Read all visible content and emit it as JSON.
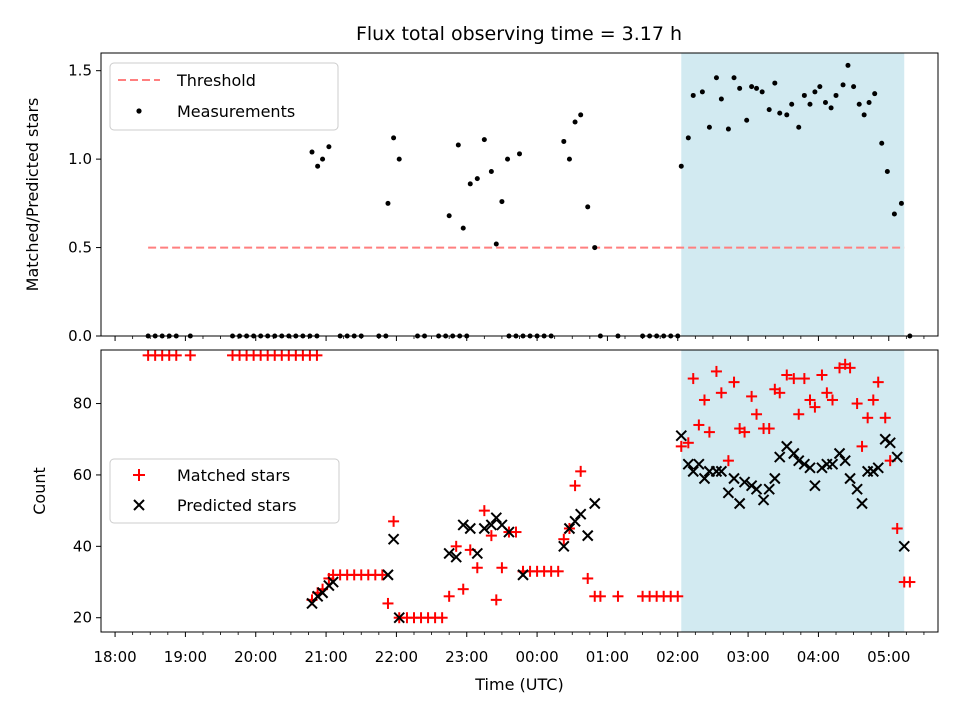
{
  "chart_data": {
    "type": "scatter",
    "title": "Flux total observing time = 3.17 h",
    "xlabel": "Time (UTC)",
    "x_unit": "hours since 18:00 UTC (values > 6 wrap past midnight)",
    "x_range": [
      -0.2,
      11.7
    ],
    "x_ticks": [
      0,
      1,
      2,
      3,
      4,
      5,
      6,
      7,
      8,
      9,
      10,
      11
    ],
    "x_tick_labels": [
      "18:00",
      "19:00",
      "20:00",
      "21:00",
      "22:00",
      "23:00",
      "00:00",
      "01:00",
      "02:00",
      "03:00",
      "04:00",
      "05:00"
    ],
    "highlight_span": {
      "start": 8.05,
      "end": 11.22
    },
    "colors": {
      "threshold": "#ff7f7f",
      "matched": "#ff0000",
      "predicted": "#000000",
      "span": "#add8e6",
      "measure": "#000000"
    },
    "top_panel": {
      "ylabel": "Matched/Predicted stars",
      "ylim": [
        0,
        1.6
      ],
      "yticks": [
        0.0,
        0.5,
        1.0,
        1.5
      ],
      "ytick_labels": [
        "0.0",
        "0.5",
        "1.0",
        "1.5"
      ],
      "threshold": {
        "label": "Threshold",
        "value": 0.5,
        "x_start": 0.47,
        "x_end": 11.22
      },
      "measurements_label": "Measurements",
      "measurements": [
        [
          0.47,
          0
        ],
        [
          0.57,
          0
        ],
        [
          0.67,
          0
        ],
        [
          0.77,
          0
        ],
        [
          0.87,
          0
        ],
        [
          1.07,
          0
        ],
        [
          1.67,
          0
        ],
        [
          1.77,
          0
        ],
        [
          1.87,
          0
        ],
        [
          1.97,
          0
        ],
        [
          2.07,
          0
        ],
        [
          2.17,
          0
        ],
        [
          2.27,
          0
        ],
        [
          2.37,
          0
        ],
        [
          2.47,
          0
        ],
        [
          2.57,
          0
        ],
        [
          2.67,
          0
        ],
        [
          2.77,
          0
        ],
        [
          2.87,
          0
        ],
        [
          3.2,
          0
        ],
        [
          3.3,
          0
        ],
        [
          3.4,
          0
        ],
        [
          3.5,
          0
        ],
        [
          3.75,
          0
        ],
        [
          3.85,
          0
        ],
        [
          4.3,
          0
        ],
        [
          4.4,
          0
        ],
        [
          4.6,
          0
        ],
        [
          4.7,
          0
        ],
        [
          4.8,
          0
        ],
        [
          4.9,
          0
        ],
        [
          5.0,
          0
        ],
        [
          5.6,
          0
        ],
        [
          5.7,
          0
        ],
        [
          5.8,
          0
        ],
        [
          5.9,
          0
        ],
        [
          6.0,
          0
        ],
        [
          6.1,
          0
        ],
        [
          6.2,
          0
        ],
        [
          6.9,
          0
        ],
        [
          7.15,
          0
        ],
        [
          7.5,
          0
        ],
        [
          7.6,
          0
        ],
        [
          7.7,
          0
        ],
        [
          7.8,
          0
        ],
        [
          7.9,
          0
        ],
        [
          8.0,
          0
        ],
        [
          11.3,
          0
        ],
        [
          2.8,
          1.04
        ],
        [
          2.88,
          0.96
        ],
        [
          2.95,
          1.0
        ],
        [
          3.04,
          1.07
        ],
        [
          3.88,
          0.75
        ],
        [
          3.96,
          1.12
        ],
        [
          4.04,
          1.0
        ],
        [
          4.75,
          0.68
        ],
        [
          4.88,
          1.08
        ],
        [
          4.95,
          0.61
        ],
        [
          5.05,
          0.86
        ],
        [
          5.15,
          0.89
        ],
        [
          5.25,
          1.11
        ],
        [
          5.35,
          0.93
        ],
        [
          5.42,
          0.52
        ],
        [
          5.5,
          0.76
        ],
        [
          5.58,
          1.0
        ],
        [
          5.75,
          1.03
        ],
        [
          6.38,
          1.1
        ],
        [
          6.46,
          1.0
        ],
        [
          6.54,
          1.21
        ],
        [
          6.62,
          1.25
        ],
        [
          6.72,
          0.73
        ],
        [
          6.82,
          0.5
        ],
        [
          8.05,
          0.96
        ],
        [
          8.15,
          1.12
        ],
        [
          8.22,
          1.36
        ],
        [
          8.35,
          1.38
        ],
        [
          8.45,
          1.18
        ],
        [
          8.55,
          1.46
        ],
        [
          8.62,
          1.34
        ],
        [
          8.72,
          1.17
        ],
        [
          8.8,
          1.46
        ],
        [
          8.88,
          1.4
        ],
        [
          8.98,
          1.22
        ],
        [
          9.05,
          1.41
        ],
        [
          9.12,
          1.4
        ],
        [
          9.2,
          1.38
        ],
        [
          9.3,
          1.28
        ],
        [
          9.38,
          1.43
        ],
        [
          9.45,
          1.26
        ],
        [
          9.55,
          1.25
        ],
        [
          9.62,
          1.31
        ],
        [
          9.72,
          1.18
        ],
        [
          9.8,
          1.36
        ],
        [
          9.88,
          1.31
        ],
        [
          9.95,
          1.38
        ],
        [
          10.02,
          1.41
        ],
        [
          10.1,
          1.32
        ],
        [
          10.18,
          1.29
        ],
        [
          10.25,
          1.36
        ],
        [
          10.35,
          1.42
        ],
        [
          10.42,
          1.53
        ],
        [
          10.5,
          1.41
        ],
        [
          10.58,
          1.31
        ],
        [
          10.65,
          1.25
        ],
        [
          10.72,
          1.32
        ],
        [
          10.8,
          1.37
        ],
        [
          10.9,
          1.09
        ],
        [
          10.98,
          0.93
        ],
        [
          11.08,
          0.69
        ],
        [
          11.18,
          0.75
        ]
      ]
    },
    "bottom_panel": {
      "ylabel": "Count",
      "ylim": [
        16,
        95
      ],
      "yticks": [
        20,
        40,
        60,
        80
      ],
      "ytick_labels": [
        "20",
        "40",
        "60",
        "80"
      ],
      "series": [
        {
          "name": "Matched stars",
          "marker": "+",
          "color": "#ff0000",
          "points": [
            [
              0.47,
              93.5
            ],
            [
              0.57,
              93.5
            ],
            [
              0.67,
              93.5
            ],
            [
              0.77,
              93.5
            ],
            [
              0.87,
              93.5
            ],
            [
              1.07,
              93.5
            ],
            [
              1.67,
              93.5
            ],
            [
              1.77,
              93.5
            ],
            [
              1.87,
              93.5
            ],
            [
              1.97,
              93.5
            ],
            [
              2.07,
              93.5
            ],
            [
              2.17,
              93.5
            ],
            [
              2.27,
              93.5
            ],
            [
              2.37,
              93.5
            ],
            [
              2.47,
              93.5
            ],
            [
              2.57,
              93.5
            ],
            [
              2.67,
              93.5
            ],
            [
              2.77,
              93.5
            ],
            [
              2.87,
              93.5
            ],
            [
              2.8,
              25
            ],
            [
              2.88,
              27
            ],
            [
              2.95,
              28
            ],
            [
              3.04,
              31
            ],
            [
              3.1,
              32
            ],
            [
              3.2,
              32
            ],
            [
              3.3,
              32
            ],
            [
              3.4,
              32
            ],
            [
              3.5,
              32
            ],
            [
              3.6,
              32
            ],
            [
              3.7,
              32
            ],
            [
              3.8,
              32
            ],
            [
              3.88,
              24
            ],
            [
              3.96,
              47
            ],
            [
              4.04,
              20
            ],
            [
              4.15,
              20
            ],
            [
              4.25,
              20
            ],
            [
              4.35,
              20
            ],
            [
              4.45,
              20
            ],
            [
              4.55,
              20
            ],
            [
              4.65,
              20
            ],
            [
              4.75,
              26
            ],
            [
              4.85,
              40
            ],
            [
              4.95,
              28
            ],
            [
              5.05,
              39
            ],
            [
              5.15,
              34
            ],
            [
              5.25,
              50
            ],
            [
              5.35,
              43
            ],
            [
              5.42,
              25
            ],
            [
              5.5,
              34
            ],
            [
              5.6,
              44
            ],
            [
              5.7,
              44
            ],
            [
              5.8,
              33
            ],
            [
              5.9,
              33
            ],
            [
              6.0,
              33
            ],
            [
              6.1,
              33
            ],
            [
              6.2,
              33
            ],
            [
              6.3,
              33
            ],
            [
              6.38,
              42
            ],
            [
              6.46,
              45
            ],
            [
              6.54,
              57
            ],
            [
              6.62,
              61
            ],
            [
              6.72,
              31
            ],
            [
              6.82,
              26
            ],
            [
              6.9,
              26
            ],
            [
              7.15,
              26
            ],
            [
              7.5,
              26
            ],
            [
              7.6,
              26
            ],
            [
              7.7,
              26
            ],
            [
              7.8,
              26
            ],
            [
              7.9,
              26
            ],
            [
              8.0,
              26
            ],
            [
              8.05,
              68
            ],
            [
              8.15,
              69
            ],
            [
              8.22,
              87
            ],
            [
              8.3,
              74
            ],
            [
              8.38,
              81
            ],
            [
              8.45,
              72
            ],
            [
              8.55,
              89
            ],
            [
              8.62,
              83
            ],
            [
              8.72,
              64
            ],
            [
              8.8,
              86
            ],
            [
              8.88,
              73
            ],
            [
              8.95,
              72
            ],
            [
              9.05,
              82
            ],
            [
              9.12,
              77
            ],
            [
              9.22,
              73
            ],
            [
              9.3,
              73
            ],
            [
              9.38,
              84
            ],
            [
              9.45,
              83
            ],
            [
              9.55,
              88
            ],
            [
              9.65,
              87
            ],
            [
              9.72,
              77
            ],
            [
              9.8,
              87
            ],
            [
              9.88,
              81
            ],
            [
              9.95,
              79
            ],
            [
              10.05,
              88
            ],
            [
              10.12,
              83
            ],
            [
              10.2,
              81
            ],
            [
              10.3,
              90
            ],
            [
              10.38,
              91
            ],
            [
              10.45,
              90
            ],
            [
              10.55,
              80
            ],
            [
              10.62,
              68
            ],
            [
              10.7,
              76
            ],
            [
              10.78,
              81
            ],
            [
              10.85,
              86
            ],
            [
              10.95,
              76
            ],
            [
              11.02,
              64
            ],
            [
              11.12,
              45
            ],
            [
              11.22,
              30
            ],
            [
              11.3,
              30
            ]
          ]
        },
        {
          "name": "Predicted stars",
          "marker": "x",
          "color": "#000000",
          "points": [
            [
              2.8,
              24
            ],
            [
              2.88,
              26
            ],
            [
              2.95,
              27
            ],
            [
              3.04,
              29
            ],
            [
              3.1,
              30
            ],
            [
              3.88,
              32
            ],
            [
              3.96,
              42
            ],
            [
              4.04,
              20
            ],
            [
              4.75,
              38
            ],
            [
              4.85,
              37
            ],
            [
              4.95,
              46
            ],
            [
              5.05,
              45
            ],
            [
              5.15,
              38
            ],
            [
              5.25,
              45
            ],
            [
              5.35,
              46
            ],
            [
              5.42,
              48
            ],
            [
              5.5,
              46
            ],
            [
              5.6,
              44
            ],
            [
              5.8,
              32
            ],
            [
              6.38,
              40
            ],
            [
              6.46,
              45
            ],
            [
              6.54,
              47
            ],
            [
              6.62,
              49
            ],
            [
              6.72,
              43
            ],
            [
              6.82,
              52
            ],
            [
              8.05,
              71
            ],
            [
              8.15,
              63
            ],
            [
              8.22,
              61
            ],
            [
              8.3,
              63
            ],
            [
              8.38,
              59
            ],
            [
              8.45,
              61
            ],
            [
              8.55,
              61
            ],
            [
              8.62,
              61
            ],
            [
              8.72,
              55
            ],
            [
              8.8,
              59
            ],
            [
              8.88,
              52
            ],
            [
              8.95,
              58
            ],
            [
              9.05,
              57
            ],
            [
              9.12,
              56
            ],
            [
              9.22,
              53
            ],
            [
              9.3,
              56
            ],
            [
              9.38,
              59
            ],
            [
              9.45,
              65
            ],
            [
              9.55,
              68
            ],
            [
              9.65,
              66
            ],
            [
              9.72,
              64
            ],
            [
              9.8,
              63
            ],
            [
              9.88,
              62
            ],
            [
              9.95,
              57
            ],
            [
              10.05,
              62
            ],
            [
              10.12,
              63
            ],
            [
              10.2,
              63
            ],
            [
              10.3,
              66
            ],
            [
              10.38,
              64
            ],
            [
              10.45,
              59
            ],
            [
              10.55,
              56
            ],
            [
              10.62,
              52
            ],
            [
              10.7,
              61
            ],
            [
              10.78,
              61
            ],
            [
              10.85,
              62
            ],
            [
              10.95,
              70
            ],
            [
              11.02,
              69
            ],
            [
              11.12,
              65
            ],
            [
              11.22,
              40
            ]
          ]
        }
      ]
    }
  }
}
